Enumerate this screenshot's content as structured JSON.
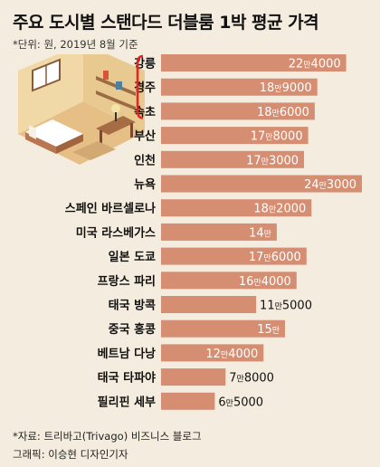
{
  "title": "주요 도시별 스탠다드 더블룸 1박 평균 가격",
  "subtitle": "*단위: 원, 2019년 8월 기준",
  "source": "*자료: 트리바고(Trivago) 비즈니스 블로그",
  "credit": "그래픽: 이승현 디자인기자",
  "colors": {
    "bar": "#d58e72",
    "background": "#f4ecde",
    "label_inside": "#ffffff",
    "label_outside": "#111111",
    "bracket": "#e8231f"
  },
  "chart_data": {
    "type": "bar",
    "orientation": "horizontal",
    "categories": [
      "강릉",
      "경주",
      "속초",
      "부산",
      "인천",
      "뉴욕",
      "스페인 바르셀로나",
      "미국 라스베가스",
      "일본 도쿄",
      "프랑스 파리",
      "태국 방콕",
      "중국 홍콩",
      "베트남 다낭",
      "태국 타파야",
      "필리핀 세부"
    ],
    "values": [
      224000,
      189000,
      186000,
      178000,
      173000,
      243000,
      182000,
      140000,
      176000,
      164000,
      115000,
      150000,
      124000,
      78000,
      65000
    ],
    "labels": [
      {
        "num": "22",
        "unit": "만",
        "rest": "4000"
      },
      {
        "num": "18",
        "unit": "만",
        "rest": "9000"
      },
      {
        "num": "18",
        "unit": "만",
        "rest": "6000"
      },
      {
        "num": "17",
        "unit": "만",
        "rest": "8000"
      },
      {
        "num": "17",
        "unit": "만",
        "rest": "3000"
      },
      {
        "num": "24",
        "unit": "만",
        "rest": "3000"
      },
      {
        "num": "18",
        "unit": "만",
        "rest": "2000"
      },
      {
        "num": "14",
        "unit": "만",
        "rest": ""
      },
      {
        "num": "17",
        "unit": "만",
        "rest": "6000"
      },
      {
        "num": "16",
        "unit": "만",
        "rest": "4000"
      },
      {
        "num": "11",
        "unit": "만",
        "rest": "5000"
      },
      {
        "num": "15",
        "unit": "만",
        "rest": ""
      },
      {
        "num": "12",
        "unit": "만",
        "rest": "4000"
      },
      {
        "num": "7",
        "unit": "만",
        "rest": "8000"
      },
      {
        "num": "6",
        "unit": "만",
        "rest": "5000"
      }
    ],
    "bracketed_categories": [
      "강릉",
      "경주",
      "속초"
    ],
    "xlim": [
      0,
      243000
    ],
    "xlabel": "",
    "ylabel": "",
    "grid": false,
    "legend": "none"
  }
}
